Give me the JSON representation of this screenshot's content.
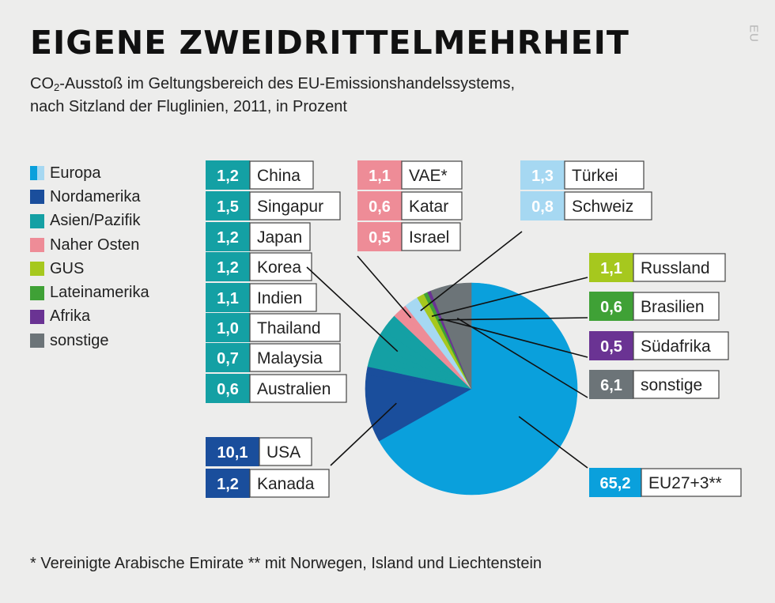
{
  "header": {
    "title": "EIGENE ZWEIDRITTELMEHRHEIT",
    "subtitle_pre": "CO",
    "subtitle_sub": "2",
    "subtitle_line1_rest": "-Ausstoß im Geltungsbereich des EU-Emissionshandelssystems,",
    "subtitle_line2": "nach Sitzland der Fluglinien, 2011, in Prozent",
    "brand": "EU"
  },
  "legend": [
    {
      "label": "Europa",
      "colors": [
        "#0aa0dc",
        "#a6d8f2"
      ]
    },
    {
      "label": "Nordamerika",
      "colors": [
        "#1a4e9c"
      ]
    },
    {
      "label": "Asien/Pazifik",
      "colors": [
        "#14a0a4"
      ]
    },
    {
      "label": "Naher Osten",
      "colors": [
        "#ee8c97"
      ]
    },
    {
      "label": "GUS",
      "colors": [
        "#a6c81e"
      ]
    },
    {
      "label": "Lateinamerika",
      "colors": [
        "#3fa136"
      ]
    },
    {
      "label": "Afrika",
      "colors": [
        "#6a3393"
      ]
    },
    {
      "label": "sonstige",
      "colors": [
        "#6c7478"
      ]
    }
  ],
  "chart_data": {
    "type": "pie",
    "title": "EIGENE ZWEIDRITTELMEHRHEIT",
    "unit": "Prozent",
    "slices": [
      {
        "label": "EU27+3**",
        "value": 65.2,
        "value_text": "65,2",
        "color": "#0aa0dc"
      },
      {
        "label": "USA",
        "value": 10.1,
        "value_text": "10,1",
        "color": "#1a4e9c"
      },
      {
        "label": "Kanada",
        "value": 1.2,
        "value_text": "1,2",
        "color": "#1a4e9c"
      },
      {
        "label": "China",
        "value": 1.2,
        "value_text": "1,2",
        "color": "#14a0a4"
      },
      {
        "label": "Singapur",
        "value": 1.5,
        "value_text": "1,5",
        "color": "#14a0a4"
      },
      {
        "label": "Japan",
        "value": 1.2,
        "value_text": "1,2",
        "color": "#14a0a4"
      },
      {
        "label": "Korea",
        "value": 1.2,
        "value_text": "1,2",
        "color": "#14a0a4"
      },
      {
        "label": "Indien",
        "value": 1.1,
        "value_text": "1,1",
        "color": "#14a0a4"
      },
      {
        "label": "Thailand",
        "value": 1.0,
        "value_text": "1,0",
        "color": "#14a0a4"
      },
      {
        "label": "Malaysia",
        "value": 0.7,
        "value_text": "0,7",
        "color": "#14a0a4"
      },
      {
        "label": "Australien",
        "value": 0.6,
        "value_text": "0,6",
        "color": "#14a0a4"
      },
      {
        "label": "VAE*",
        "value": 1.1,
        "value_text": "1,1",
        "color": "#ee8c97"
      },
      {
        "label": "Katar",
        "value": 0.6,
        "value_text": "0,6",
        "color": "#ee8c97"
      },
      {
        "label": "Israel",
        "value": 0.5,
        "value_text": "0,5",
        "color": "#ee8c97"
      },
      {
        "label": "Türkei",
        "value": 1.3,
        "value_text": "1,3",
        "color": "#a6d8f2"
      },
      {
        "label": "Schweiz",
        "value": 0.8,
        "value_text": "0,8",
        "color": "#a6d8f2"
      },
      {
        "label": "Russland",
        "value": 1.1,
        "value_text": "1,1",
        "color": "#a6c81e"
      },
      {
        "label": "Brasilien",
        "value": 0.6,
        "value_text": "0,6",
        "color": "#3fa136"
      },
      {
        "label": "Südafrika",
        "value": 0.5,
        "value_text": "0,5",
        "color": "#6a3393"
      },
      {
        "label": "sonstige",
        "value": 6.1,
        "value_text": "6,1",
        "color": "#6c7478"
      }
    ]
  },
  "footnote": "* Vereinigte Arabische Emirate ** mit Norwegen, Island und Liechtenstein"
}
